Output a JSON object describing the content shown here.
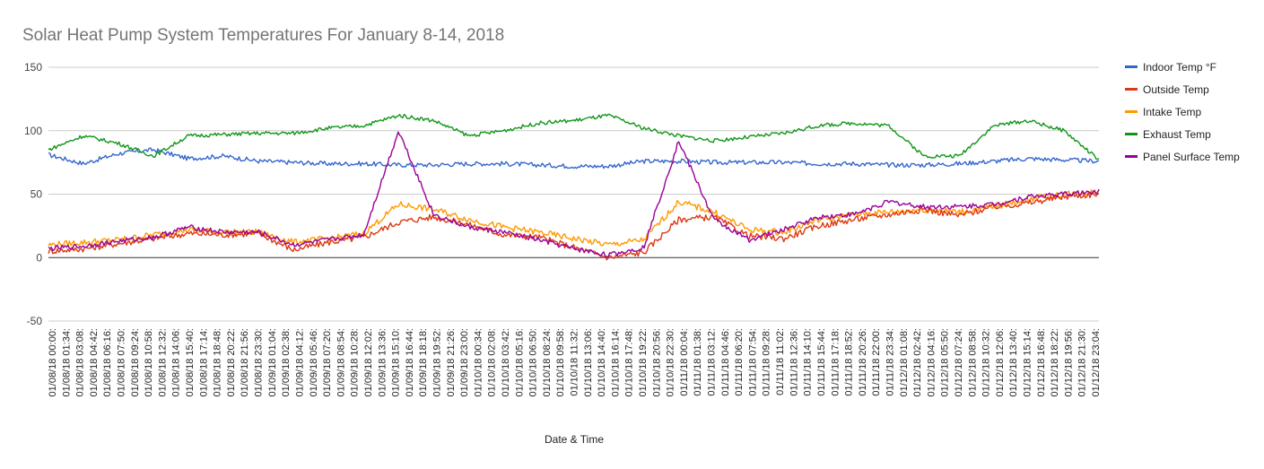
{
  "chart_data": {
    "type": "line",
    "title": "Solar Heat Pump System Temperatures For January 8-14, 2018",
    "xlabel": "Date & Time",
    "ylabel": "",
    "ylim": [
      -50,
      150
    ],
    "yticks": [
      -50,
      0,
      50,
      100,
      150
    ],
    "grid": true,
    "legend_position": "right",
    "x_tick_labels": [
      "01/08/18 00:00:",
      "01/08/18 01:34:",
      "01/08/18 03:08:",
      "01/08/18 04:42:",
      "01/08/18 06:16:",
      "01/08/18 07:50:",
      "01/08/18 09:24:",
      "01/08/18 10:58:",
      "01/08/18 12:32:",
      "01/08/18 14:06:",
      "01/08/18 15:40:",
      "01/08/18 17:14:",
      "01/08/18 18:48:",
      "01/08/18 20:22:",
      "01/08/18 21:56:",
      "01/08/18 23:30:",
      "01/09/18 01:04:",
      "01/09/18 02:38:",
      "01/09/18 04:12:",
      "01/09/18 05:46:",
      "01/09/18 07:20:",
      "01/09/18 08:54:",
      "01/09/18 10:28:",
      "01/09/18 12:02:",
      "01/09/18 13:36:",
      "01/09/18 15:10:",
      "01/09/18 16:44:",
      "01/09/18 18:18:",
      "01/09/18 19:52:",
      "01/09/18 21:26:",
      "01/09/18 23:00:",
      "01/10/18 00:34:",
      "01/10/18 02:08:",
      "01/10/18 03:42:",
      "01/10/18 05:16:",
      "01/10/18 06:50:",
      "01/10/18 08:24:",
      "01/10/18 09:58:",
      "01/10/18 11:32:",
      "01/10/18 13:06:",
      "01/10/18 14:40:",
      "01/10/18 16:14:",
      "01/10/18 17:48:",
      "01/10/18 19:22:",
      "01/10/18 20:56:",
      "01/10/18 22:30:",
      "01/11/18 00:04:",
      "01/11/18 01:38:",
      "01/11/18 03:12:",
      "01/11/18 04:46:",
      "01/11/18 06:20:",
      "01/11/18 07:54:",
      "01/11/18 09:28:",
      "01/11/18 11:02:",
      "01/11/18 12:36:",
      "01/11/18 14:10:",
      "01/11/18 15:44:",
      "01/11/18 17:18:",
      "01/11/18 18:52:",
      "01/11/18 20:26:",
      "01/11/18 22:00:",
      "01/11/18 23:34:",
      "01/12/18 01:08:",
      "01/12/18 02:42:",
      "01/12/18 04:16:",
      "01/12/18 05:50:",
      "01/12/18 07:24:",
      "01/12/18 08:58:",
      "01/12/18 10:32:",
      "01/12/18 12:06:",
      "01/12/18 13:40:",
      "01/12/18 15:14:",
      "01/12/18 16:48:",
      "01/12/18 18:22:",
      "01/12/18 19:56:",
      "01/12/18 21:30:",
      "01/12/18 23:04:"
    ],
    "x_hours": [
      0,
      4,
      8,
      12,
      16,
      20,
      24,
      28,
      32,
      36,
      40,
      44,
      48,
      52,
      56,
      60,
      64,
      68,
      72,
      76,
      80,
      84,
      88,
      92,
      96,
      100,
      104,
      108,
      112,
      116,
      120
    ],
    "series": [
      {
        "name": "Indoor Temp °F",
        "color": "#3366cc",
        "values": [
          81,
          74,
          82,
          85,
          78,
          80,
          76,
          75,
          74,
          74,
          73,
          73,
          74,
          74,
          73,
          72,
          72,
          76,
          76,
          75,
          75,
          75,
          74,
          74,
          73,
          73,
          74,
          76,
          78,
          77,
          76
        ]
      },
      {
        "name": "Outside Temp",
        "color": "#dc3912",
        "values": [
          5,
          7,
          11,
          15,
          19,
          18,
          19,
          6,
          12,
          16,
          28,
          32,
          26,
          18,
          16,
          8,
          0,
          4,
          30,
          32,
          17,
          15,
          25,
          30,
          34,
          38,
          33,
          40,
          43,
          48,
          50
        ]
      },
      {
        "name": "Intake Temp",
        "color": "#ff9900",
        "values": [
          10,
          12,
          14,
          18,
          22,
          20,
          20,
          12,
          15,
          19,
          42,
          38,
          30,
          24,
          20,
          15,
          10,
          14,
          44,
          36,
          22,
          20,
          30,
          34,
          36,
          38,
          36,
          40,
          46,
          50,
          52
        ]
      },
      {
        "name": "Exhaust Temp",
        "color": "#109618",
        "values": [
          85,
          96,
          90,
          80,
          96,
          97,
          98,
          98,
          102,
          104,
          112,
          108,
          96,
          100,
          106,
          108,
          112,
          102,
          96,
          92,
          95,
          98,
          104,
          106,
          104,
          80,
          80,
          104,
          108,
          100,
          77
        ]
      },
      {
        "name": "Panel Surface Temp",
        "color": "#990099",
        "values": [
          7,
          9,
          13,
          16,
          24,
          20,
          20,
          10,
          14,
          18,
          100,
          34,
          24,
          20,
          14,
          7,
          2,
          8,
          92,
          30,
          14,
          22,
          32,
          34,
          44,
          40,
          40,
          42,
          48,
          50,
          52
        ]
      }
    ]
  }
}
